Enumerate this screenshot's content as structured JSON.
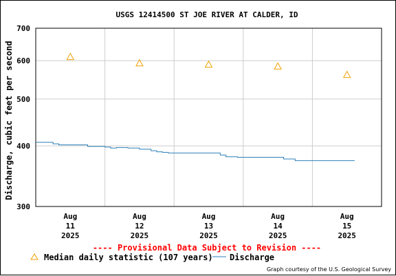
{
  "chart_data": {
    "type": "line",
    "title": "USGS 12414500 ST JOE RIVER AT CALDER, ID",
    "ylabel": "Discharge, cubic feet per second",
    "xlabel": "",
    "yscale": "log",
    "ylim": [
      300,
      700
    ],
    "yticks": [
      300,
      400,
      500,
      600,
      700
    ],
    "x_range": [
      "2025-08-10 12:00",
      "2025-08-15 12:00"
    ],
    "xticks": [
      {
        "at": "2025-08-11",
        "line1": "Aug",
        "line2": "11",
        "line3": "2025"
      },
      {
        "at": "2025-08-12",
        "line1": "Aug",
        "line2": "12",
        "line3": "2025"
      },
      {
        "at": "2025-08-13",
        "line1": "Aug",
        "line2": "13",
        "line3": "2025"
      },
      {
        "at": "2025-08-14",
        "line1": "Aug",
        "line2": "14",
        "line3": "2025"
      },
      {
        "at": "2025-08-15",
        "line1": "Aug",
        "line2": "15",
        "line3": "2025"
      }
    ],
    "grid": true,
    "series": [
      {
        "name": "Median daily statistic (107 years)",
        "type": "scatter",
        "marker": "triangle",
        "color": "#f0a000",
        "x": [
          "2025-08-11",
          "2025-08-12",
          "2025-08-13",
          "2025-08-14",
          "2025-08-15"
        ],
        "values": [
          611,
          593,
          589,
          584,
          561
        ]
      },
      {
        "name": "Discharge",
        "type": "line",
        "color": "#2a7fb8",
        "x": [
          "2025-08-10 12:00",
          "2025-08-10 18:00",
          "2025-08-10 20:00",
          "2025-08-11 04:00",
          "2025-08-11 06:00",
          "2025-08-11 12:00",
          "2025-08-11 14:00",
          "2025-08-11 16:00",
          "2025-08-11 20:00",
          "2025-08-12 00:00",
          "2025-08-12 02:00",
          "2025-08-12 04:00",
          "2025-08-12 06:00",
          "2025-08-12 08:00",
          "2025-08-12 10:00",
          "2025-08-12 14:00",
          "2025-08-12 20:00",
          "2025-08-13 02:00",
          "2025-08-13 04:00",
          "2025-08-13 06:00",
          "2025-08-13 08:00",
          "2025-08-13 10:00",
          "2025-08-13 14:00",
          "2025-08-13 20:00",
          "2025-08-14 00:00",
          "2025-08-14 02:00",
          "2025-08-14 06:00",
          "2025-08-14 10:00",
          "2025-08-14 14:00",
          "2025-08-14 20:00"
        ],
        "values": [
          407,
          404,
          402,
          402,
          399,
          398,
          396,
          397,
          396,
          394,
          394,
          391,
          389,
          388,
          387,
          387,
          387,
          387,
          383,
          380,
          380,
          379,
          379,
          379,
          379,
          376,
          373,
          373,
          373,
          373
        ]
      }
    ],
    "legend_placement": "bottom-left",
    "notice": "---- Provisional Data Subject to Revision ----",
    "credit": "Graph courtesy of the U.S. Geological Survey"
  }
}
